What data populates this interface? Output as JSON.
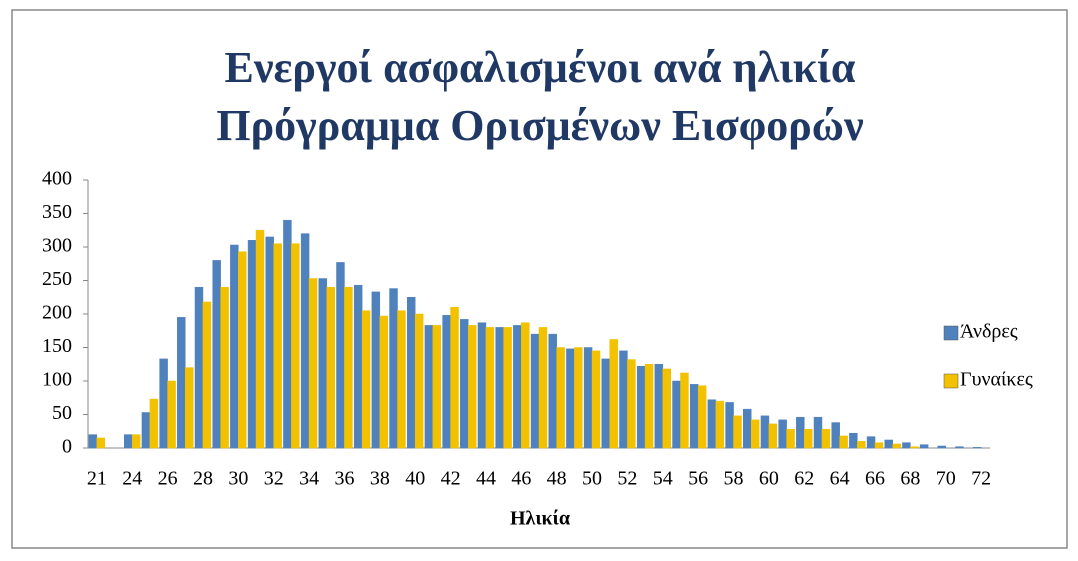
{
  "chart_data": {
    "type": "bar",
    "title": [
      "Ενεργοί ασφαλισμένοι ανά ηλικία",
      "Πρόγραμμα Ορισμένων Εισφορών"
    ],
    "x_label": "Ηλικία",
    "categories": [
      21,
      null,
      24,
      null,
      26,
      null,
      28,
      null,
      30,
      null,
      32,
      null,
      34,
      null,
      36,
      null,
      38,
      null,
      40,
      null,
      42,
      null,
      44,
      null,
      46,
      null,
      48,
      null,
      50,
      null,
      52,
      null,
      54,
      null,
      56,
      null,
      58,
      null,
      60,
      null,
      62,
      null,
      64,
      null,
      66,
      null,
      68,
      null,
      70,
      null,
      72
    ],
    "series": [
      {
        "name": "Άνδρες",
        "color": "#4f81bd",
        "values": [
          20,
          0,
          20,
          53,
          133,
          195,
          240,
          280,
          303,
          310,
          315,
          340,
          320,
          253,
          277,
          243,
          233,
          238,
          225,
          183,
          198,
          192,
          187,
          180,
          183,
          170,
          170,
          148,
          150,
          133,
          145,
          122,
          125,
          100,
          95,
          72,
          68,
          58,
          48,
          42,
          46,
          46,
          38,
          22,
          17,
          12,
          8,
          5,
          3,
          2,
          1
        ]
      },
      {
        "name": "Γυναίκες",
        "color": "#f2c200",
        "values": [
          15,
          0,
          20,
          73,
          100,
          120,
          218,
          240,
          293,
          325,
          305,
          305,
          253,
          240,
          240,
          205,
          197,
          205,
          200,
          183,
          210,
          183,
          180,
          180,
          187,
          180,
          150,
          150,
          145,
          162,
          132,
          125,
          118,
          112,
          93,
          70,
          48,
          42,
          36,
          28,
          28,
          28,
          18,
          10,
          8,
          6,
          2,
          0,
          0,
          0,
          0
        ]
      }
    ],
    "ylim": [
      0,
      400
    ],
    "yticks": [
      0,
      50,
      100,
      150,
      200,
      250,
      300,
      350,
      400
    ],
    "grid": false,
    "legend": "right"
  }
}
